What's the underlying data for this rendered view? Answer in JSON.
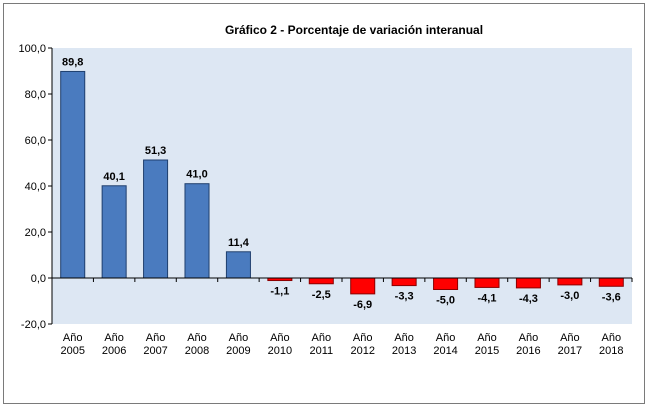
{
  "chart_data": {
    "type": "bar",
    "title": "Gráfico 2 - Porcentaje de variación interanual",
    "categories": [
      [
        "Año",
        "2005"
      ],
      [
        "Año",
        "2006"
      ],
      [
        "Año",
        "2007"
      ],
      [
        "Año",
        "2008"
      ],
      [
        "Año",
        "2009"
      ],
      [
        "Año",
        "2010"
      ],
      [
        "Año",
        "2011"
      ],
      [
        "Año",
        "2012"
      ],
      [
        "Año",
        "2013"
      ],
      [
        "Año",
        "2014"
      ],
      [
        "Año",
        "2015"
      ],
      [
        "Año",
        "2016"
      ],
      [
        "Año",
        "2017"
      ],
      [
        "Año",
        "2018"
      ]
    ],
    "values": [
      89.8,
      40.1,
      51.3,
      41.0,
      11.4,
      -1.1,
      -2.5,
      -6.9,
      -3.3,
      -5.0,
      -4.1,
      -4.3,
      -3.0,
      -3.6
    ],
    "value_labels": [
      "89,8",
      "40,1",
      "51,3",
      "41,0",
      "11,4",
      "-1,1",
      "-2,5",
      "-6,9",
      "-3,3",
      "-5,0",
      "-4,1",
      "-4,3",
      "-3,0",
      "-3,6"
    ],
    "yticks": [
      -20,
      0,
      20,
      40,
      60,
      80,
      100
    ],
    "ytick_labels": [
      "-20,0",
      "0,0",
      "20,0",
      "40,0",
      "60,0",
      "80,0",
      "100,0"
    ],
    "ylim": [
      -20,
      100
    ],
    "grid": false,
    "legend": "none",
    "colors": {
      "positive": "#4a7bbf",
      "positive_border": "#1f3f6e",
      "negative": "#ff0000",
      "negative_border": "#8a0000",
      "plot_background": "#dde7f3",
      "axis": "#000000"
    }
  }
}
